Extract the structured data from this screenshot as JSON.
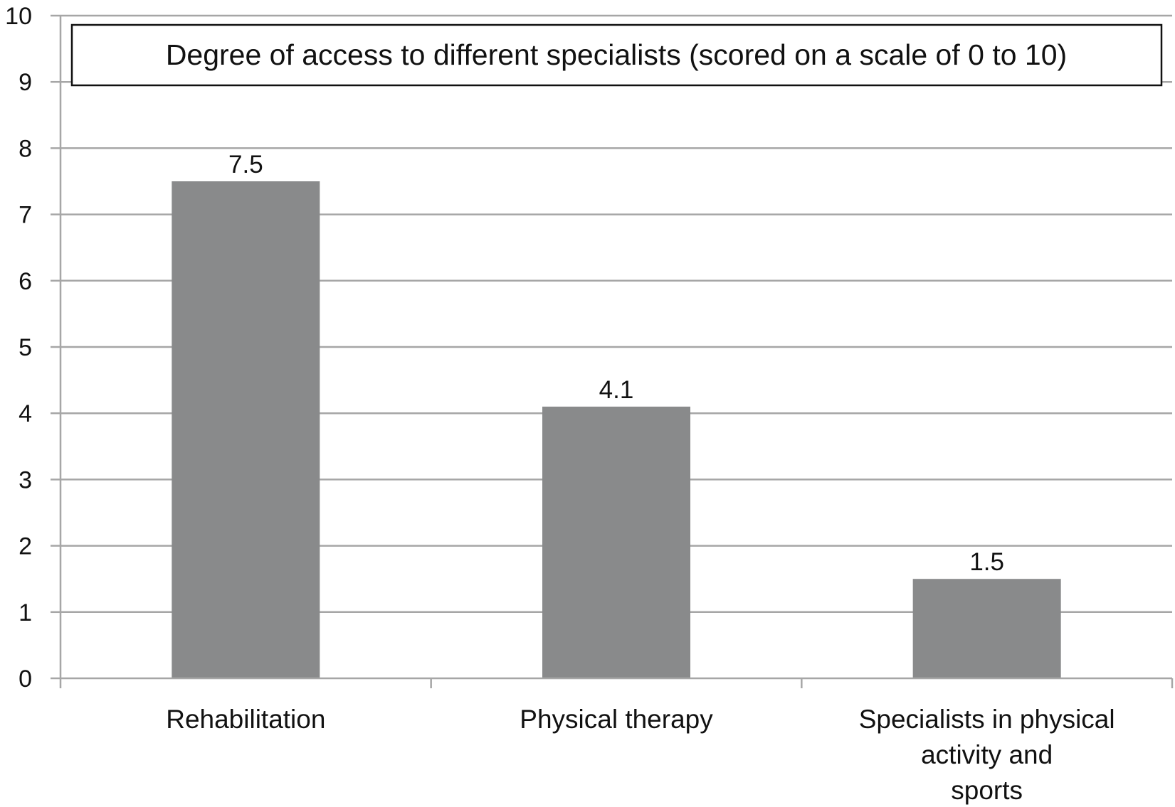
{
  "chart_data": {
    "type": "bar",
    "title": "Degree of access to different specialists (scored on a scale of 0 to 10)",
    "categories": [
      "Rehabilitation",
      "Physical therapy",
      "Specialists in physical activity and sports"
    ],
    "category_lines": [
      [
        "Rehabilitation"
      ],
      [
        "Physical therapy"
      ],
      [
        "Specialists in physical",
        "activity and",
        "sports"
      ]
    ],
    "values": [
      7.5,
      4.1,
      1.5
    ],
    "data_labels": [
      "7.5",
      "4.1",
      "1.5"
    ],
    "ylim": [
      0,
      10
    ],
    "yticks": [
      0,
      1,
      2,
      3,
      4,
      5,
      6,
      7,
      8,
      9,
      10
    ],
    "ytick_labels": [
      "0",
      "1",
      "2",
      "3",
      "4",
      "5",
      "6",
      "7",
      "8",
      "9",
      "10"
    ],
    "xlabel": "",
    "ylabel": "",
    "grid": true,
    "legend": "none",
    "bar_color": "#898a8b",
    "grid_color": "#a6a6a6"
  }
}
